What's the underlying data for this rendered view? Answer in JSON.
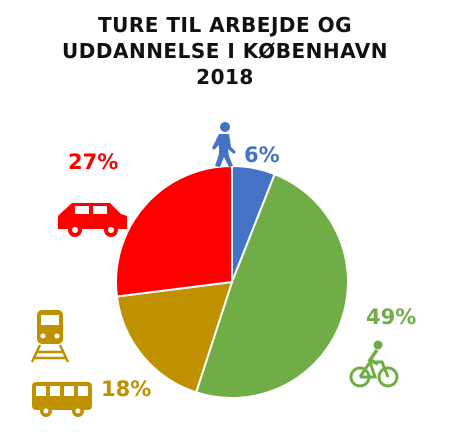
{
  "chart_data": {
    "type": "pie",
    "title_lines": [
      "TURE TIL ARBEJDE OG",
      "UDDANNELSE I KØBENHAVN",
      "2018"
    ],
    "slices": [
      {
        "label": "6%",
        "value": 6,
        "color": "#4472c4",
        "icon": "walking-person-icon"
      },
      {
        "label": "49%",
        "value": 49,
        "color": "#70ad47",
        "icon": "bicycle-icon"
      },
      {
        "label": "18%",
        "value": 18,
        "color": "#bf9000",
        "icon": "train-and-bus-icon"
      },
      {
        "label": "27%",
        "value": 27,
        "color": "#ff0000",
        "icon": "car-icon"
      }
    ],
    "start": "12 o'clock",
    "direction": "clockwise",
    "legend": "none"
  }
}
